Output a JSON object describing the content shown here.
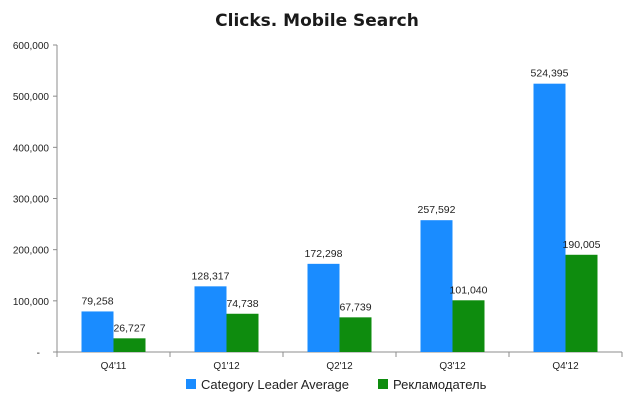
{
  "chart_data": {
    "type": "bar",
    "title": "Clicks. Mobile Search",
    "categories": [
      "Q4'11",
      "Q1'12",
      "Q2'12",
      "Q3'12",
      "Q4'12"
    ],
    "series": [
      {
        "name": "Category Leader Average",
        "color": "#1A8CFF",
        "values": [
          79258,
          128317,
          172298,
          257592,
          524395
        ],
        "labels": [
          "79,258",
          "128,317",
          "172,298",
          "257,592",
          "524,395"
        ]
      },
      {
        "name": "Рекламодатель",
        "color": "#0E8C0E",
        "values": [
          26727,
          74738,
          67739,
          101040,
          190005
        ],
        "labels": [
          "26,727",
          "74,738",
          "67,739",
          "101,040",
          "190,005"
        ]
      }
    ],
    "yticks": [
      0,
      100000,
      200000,
      300000,
      400000,
      500000,
      600000
    ],
    "ytick_labels": [
      "-",
      "100,000",
      "200,000",
      "300,000",
      "400,000",
      "500,000",
      "600,000"
    ],
    "ylim": [
      0,
      600000
    ],
    "grid": false,
    "legend_position": "bottom"
  }
}
